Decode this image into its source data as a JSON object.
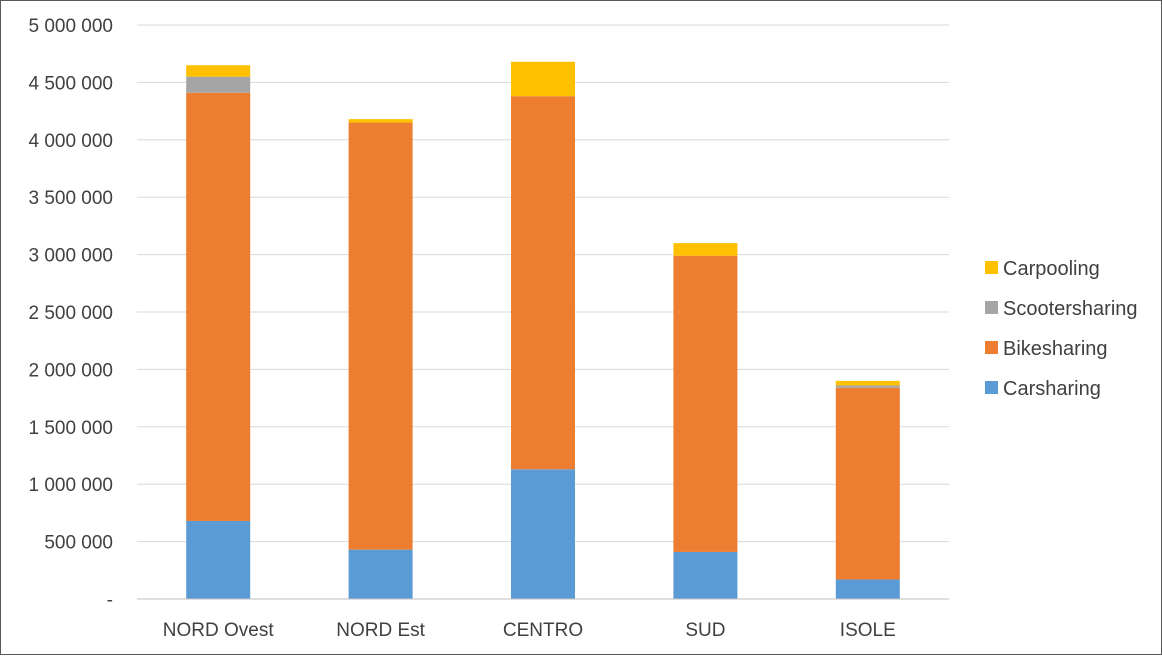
{
  "chart_data": {
    "type": "bar",
    "stacked": true,
    "categories": [
      "NORD Ovest",
      "NORD Est",
      "CENTRO",
      "SUD",
      "ISOLE"
    ],
    "series": [
      {
        "name": "Carsharing",
        "color": "#5B9BD5",
        "values": [
          680000,
          430000,
          1130000,
          410000,
          170000
        ]
      },
      {
        "name": "Bikesharing",
        "color": "#ED7D31",
        "values": [
          3730000,
          3720000,
          3250000,
          2580000,
          1670000
        ]
      },
      {
        "name": "Scootersharing",
        "color": "#A5A5A5",
        "values": [
          140000,
          0,
          0,
          0,
          20000
        ]
      },
      {
        "name": "Carpooling",
        "color": "#FFC000",
        "values": [
          100000,
          30000,
          300000,
          110000,
          40000
        ]
      }
    ],
    "ylim": [
      0,
      5000000
    ],
    "yticks": [
      0,
      500000,
      1000000,
      1500000,
      2000000,
      2500000,
      3000000,
      3500000,
      4000000,
      4500000,
      5000000
    ],
    "ytick_labels": [
      "-",
      "500 000",
      "1 000 000",
      "1 500 000",
      "2 000 000",
      "2 500 000",
      "3 000 000",
      "3 500 000",
      "4 000 000",
      "4 500 000",
      "5 000 000"
    ],
    "legend_order": [
      "Carpooling",
      "Scootersharing",
      "Bikesharing",
      "Carsharing"
    ],
    "legend_position": "right",
    "grid": true
  }
}
